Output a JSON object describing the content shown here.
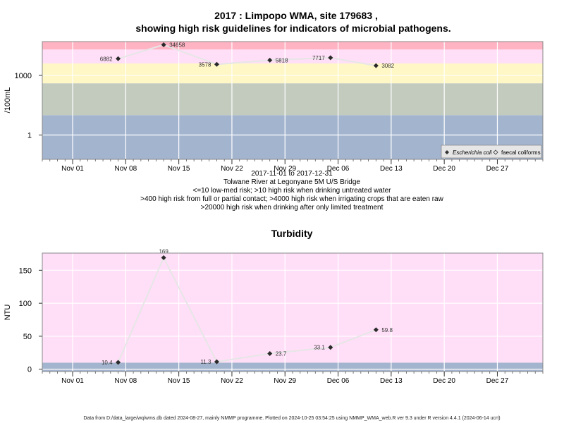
{
  "page": {
    "main_title_1": "2017 : Limpopo WMA, site 179683 ,",
    "main_title_2": "showing high risk guidelines for indicators of microbial pathogens.",
    "footer": "Data from D:/data_large/wq/wms.db dated 2024-08-27, mainly NMMP programme. Plotted on 2024-10-25 03:54:25 using NMMP_WMA_web.R ver 9.3 under R version 4.4.1 (2024-06-14 ucrt)"
  },
  "chart_data": [
    {
      "type": "scatter",
      "id": "microbial",
      "ylabel": "/100mL",
      "y_scale": "log10",
      "ylim": [
        0.06,
        50000
      ],
      "y_ticks": [
        1,
        1000
      ],
      "x_domain": [
        "2017-10-28",
        "2018-01-02"
      ],
      "x_tick_labels": [
        "Nov 01",
        "Nov 08",
        "Nov 15",
        "Nov 22",
        "Nov 29",
        "Dec 06",
        "Dec 13",
        "Dec 20",
        "Dec 27"
      ],
      "x_tick_dates": [
        "2017-11-01",
        "2017-11-08",
        "2017-11-15",
        "2017-11-22",
        "2017-11-29",
        "2017-12-06",
        "2017-12-13",
        "2017-12-20",
        "2017-12-27"
      ],
      "grid": true,
      "bands": [
        {
          "from": 0.06,
          "to": 10,
          "color": "#a3b4cf"
        },
        {
          "from": 10,
          "to": 400,
          "color": "#c3cbbf"
        },
        {
          "from": 400,
          "to": 4000,
          "color": "#fff7c5"
        },
        {
          "from": 4000,
          "to": 20000,
          "color": "#ffdff7"
        },
        {
          "from": 20000,
          "to": 50000,
          "color": "#ffb3c3"
        }
      ],
      "series": [
        {
          "name": "Escherichia coli",
          "marker": "filled-diamond",
          "points": [
            {
              "x": "2017-11-07",
              "y": 6882,
              "label": "6882"
            },
            {
              "x": "2017-11-13",
              "y": 34658,
              "label": "34658"
            },
            {
              "x": "2017-11-20",
              "y": 3578,
              "label": "3578"
            },
            {
              "x": "2017-11-27",
              "y": 5818,
              "label": "5818"
            },
            {
              "x": "2017-12-05",
              "y": 7717,
              "label": "7717"
            },
            {
              "x": "2017-12-11",
              "y": 3082,
              "label": "3082"
            }
          ]
        },
        {
          "name": "faecal coliforms",
          "marker": "open-diamond",
          "points": []
        }
      ],
      "legend": "bottom-right",
      "notes": [
        "2017-11-01 to 2017-12-31",
        "Tolwane River at Legonyane 5M U/S Bridge",
        "<=10 low-med risk; >10 high risk when drinking untreated water",
        ">400 high risk from full or partial contact; >4000 high risk when irrigating crops that are eaten raw",
        ">20000 high risk when drinking after only limited treatment"
      ]
    },
    {
      "type": "line",
      "id": "turbidity",
      "title": "Turbidity",
      "ylabel": "NTU",
      "ylim": [
        -3.5,
        176
      ],
      "y_ticks": [
        0,
        50,
        100,
        150
      ],
      "x_domain": [
        "2017-10-28",
        "2018-01-02"
      ],
      "x_tick_labels": [
        "Nov 01",
        "Nov 08",
        "Nov 15",
        "Nov 22",
        "Nov 29",
        "Dec 06",
        "Dec 13",
        "Dec 20",
        "Dec 27"
      ],
      "x_tick_dates": [
        "2017-11-01",
        "2017-11-08",
        "2017-11-15",
        "2017-11-22",
        "2017-11-29",
        "2017-12-06",
        "2017-12-13",
        "2017-12-20",
        "2017-12-27"
      ],
      "grid": true,
      "bands": [
        {
          "from": -3.5,
          "to": 10,
          "color": "#a3b4cf"
        },
        {
          "from": 10,
          "to": 176,
          "color": "#ffdff7"
        }
      ],
      "series": [
        {
          "marker": "filled-diamond",
          "points": [
            {
              "x": "2017-11-07",
              "y": 10.4,
              "label": "10.4"
            },
            {
              "x": "2017-11-13",
              "y": 169,
              "label": "169"
            },
            {
              "x": "2017-11-20",
              "y": 11.3,
              "label": "11.3"
            },
            {
              "x": "2017-11-27",
              "y": 23.7,
              "label": "23.7"
            },
            {
              "x": "2017-12-05",
              "y": 33.1,
              "label": "33.1"
            },
            {
              "x": "2017-12-11",
              "y": 59.8,
              "label": "59.8"
            }
          ]
        }
      ]
    }
  ]
}
